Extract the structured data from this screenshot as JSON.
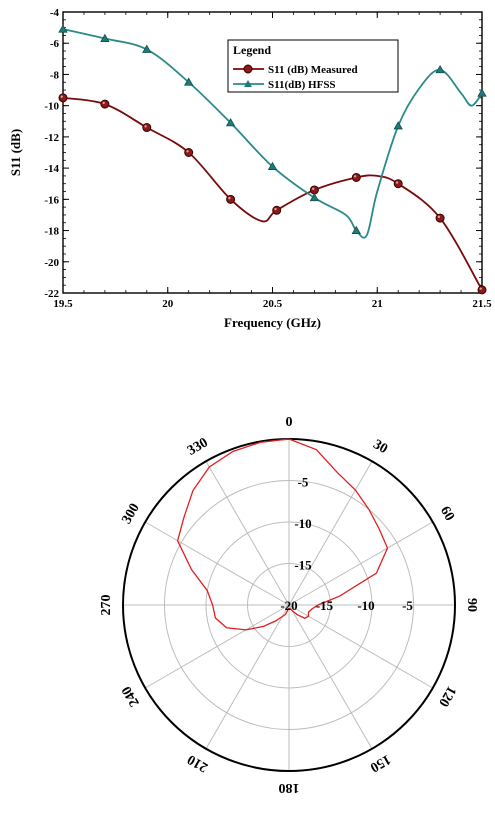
{
  "chart_data": [
    {
      "type": "line",
      "xlabel": "Frequency (GHz)",
      "ylabel": "S11 (dB)",
      "xlim": [
        19.5,
        21.5
      ],
      "ylim": [
        -22,
        -4
      ],
      "x_ticks": [
        19.5,
        20,
        20.5,
        21,
        21.5
      ],
      "x_tick_labels": [
        "19.5",
        "20",
        "20.5",
        "21",
        "21.5"
      ],
      "y_ticks": [
        -4,
        -6,
        -8,
        -10,
        -12,
        -14,
        -16,
        -18,
        -20,
        -22
      ],
      "y_tick_labels": [
        "-4",
        "-6",
        "-8",
        "-10",
        "-12",
        "-14",
        "-16",
        "-18",
        "-20",
        "-22"
      ],
      "legend_title": "Legend",
      "legend_position": "top-right",
      "series": [
        {
          "name": "S11 (dB) Measured",
          "color": "#7a0a0a",
          "marker": "circle",
          "x": [
            19.5,
            19.7,
            19.9,
            20.1,
            20.3,
            20.45,
            20.52,
            20.7,
            20.9,
            21.0,
            21.1,
            21.3,
            21.5
          ],
          "y": [
            -9.5,
            -9.9,
            -11.4,
            -13.0,
            -16.0,
            -17.4,
            -16.7,
            -15.4,
            -14.6,
            -14.5,
            -15.0,
            -17.2,
            -21.8
          ],
          "marker_x": [
            19.5,
            19.7,
            19.9,
            20.1,
            20.3,
            20.52,
            20.7,
            20.9,
            21.1,
            21.3,
            21.5
          ],
          "marker_y": [
            -9.5,
            -9.9,
            -11.4,
            -13.0,
            -16.0,
            -16.7,
            -15.4,
            -14.6,
            -15.0,
            -17.2,
            -21.8
          ]
        },
        {
          "name": "S11(dB) HFSS",
          "color": "#2a8a8a",
          "marker": "triangle",
          "x": [
            19.5,
            19.7,
            19.9,
            20.1,
            20.3,
            20.5,
            20.7,
            20.85,
            20.9,
            20.95,
            21.0,
            21.1,
            21.2,
            21.3,
            21.4,
            21.45,
            21.5
          ],
          "y": [
            -5.1,
            -5.7,
            -6.4,
            -8.5,
            -11.1,
            -13.9,
            -15.9,
            -17.0,
            -18.0,
            -18.3,
            -15.5,
            -11.3,
            -8.9,
            -7.7,
            -9.2,
            -10.0,
            -9.2
          ],
          "marker_x": [
            19.5,
            19.7,
            19.9,
            20.1,
            20.3,
            20.5,
            20.7,
            20.9,
            21.1,
            21.3,
            21.5
          ],
          "marker_y": [
            -5.1,
            -5.7,
            -6.4,
            -8.5,
            -11.1,
            -13.9,
            -15.9,
            -18.0,
            -11.3,
            -7.7,
            -9.2
          ]
        }
      ]
    },
    {
      "type": "polar",
      "r_ticks": [
        -20,
        -15,
        -10,
        -5
      ],
      "r_tick_labels": [
        "-20",
        "-15",
        "-10",
        "-5"
      ],
      "r_top_labels": [
        "-5",
        "-10",
        "-15",
        "-20"
      ],
      "r_range": [
        -20,
        0
      ],
      "angle_labels": [
        "0",
        "30",
        "60",
        "90",
        "120",
        "150",
        "180",
        "210",
        "240",
        "270",
        "300",
        "330"
      ],
      "series": [
        {
          "name": "",
          "color": "#e02020",
          "theta": [
            0,
            10,
            20,
            30,
            40,
            50,
            60,
            70,
            80,
            90,
            100,
            110,
            120,
            130,
            140,
            150,
            160,
            170,
            180,
            190,
            200,
            210,
            220,
            230,
            240,
            250,
            260,
            270,
            280,
            290,
            300,
            310,
            320,
            330,
            340,
            350,
            360
          ],
          "r": [
            0,
            -1,
            -3,
            -4,
            -5,
            -5.8,
            -6.3,
            -8.8,
            -13.8,
            -16.5,
            -17.2,
            -17.5,
            -17.3,
            -17.5,
            -18.5,
            -19.2,
            -19.5,
            -19.5,
            -19.6,
            -19.5,
            -18.8,
            -18.4,
            -17.5,
            -16.0,
            -14.0,
            -12.0,
            -11.0,
            -10.8,
            -10.0,
            -7.5,
            -4.5,
            -3.5,
            -2.0,
            -0.8,
            -0.3,
            -0.1,
            0
          ]
        }
      ]
    }
  ]
}
